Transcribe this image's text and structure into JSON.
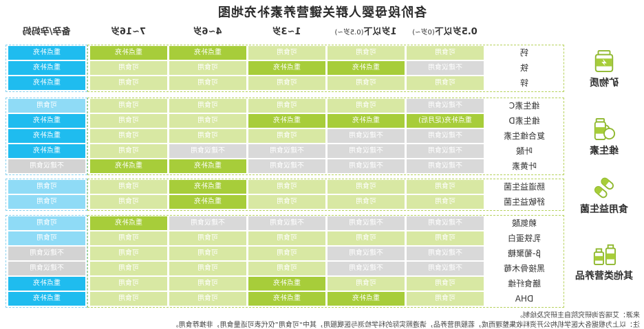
{
  "title": "各阶段母婴人群关键营养素补充地图",
  "columns": [
    {
      "label": "0.5岁以下",
      "sub": "(0岁~)"
    },
    {
      "label": "1岁以下",
      "sub": "(0.5岁~)"
    },
    {
      "label": "1~3岁",
      "sub": ""
    },
    {
      "label": "4~6岁",
      "sub": ""
    },
    {
      "label": "7~16岁",
      "sub": ""
    },
    {
      "label": "备孕/孕妈妈",
      "sub": ""
    }
  ],
  "colors": {
    "strong_green": "#a7cd3a",
    "ok_green": "#d8e8a3",
    "not_recommended_grey": "#d9d9d9",
    "strong_blue": "#1fbcef",
    "ok_blue": "#8fdbf6",
    "icon_green": "#8fb82e"
  },
  "groups": [
    {
      "name": "矿物质",
      "icon": "jar-icon",
      "rows": [
        {
          "nutrient": "钙",
          "cells": [
            "可食用",
            "可食用",
            "可食用",
            "重点补充",
            "重点补充",
            "重点补充"
          ]
        },
        {
          "nutrient": "铁",
          "cells": [
            "不建议食用",
            "重点补充",
            "重点补充",
            "可食用",
            "可食用",
            "重点补充"
          ]
        },
        {
          "nutrient": "锌",
          "cells": [
            "可食用",
            "可食用",
            "可食用",
            "可食用",
            "可食用",
            "重点补充"
          ]
        }
      ]
    },
    {
      "name": "维生素",
      "icon": "fruit-bottle-icon",
      "rows": [
        {
          "nutrient": "维生素C",
          "cells": [
            "不建议食用",
            "可食用",
            "可食用",
            "可食用",
            "可食用",
            "可食用"
          ]
        },
        {
          "nutrient": "维生素D",
          "cells": [
            "重点补充(足月后)",
            "重点补充",
            "重点补充",
            "可食用",
            "可食用",
            "重点补充"
          ]
        },
        {
          "nutrient": "复合维生素",
          "cells": [
            "不建议食用",
            "不建议食用",
            "可食用",
            "可食用",
            "可食用",
            "重点补充"
          ]
        },
        {
          "nutrient": "叶酸",
          "cells": [
            "不建议食用",
            "不建议食用",
            "不建议食用",
            "不建议食用",
            "可食用",
            "重点补充"
          ]
        },
        {
          "nutrient": "叶黄素",
          "cells": [
            "不建议食用",
            "不建议食用",
            "不建议食用",
            "重点补充",
            "重点补充",
            "不建议食用"
          ]
        }
      ]
    },
    {
      "name": "食用益生菌",
      "icon": "capsule-icon",
      "rows": [
        {
          "nutrient": "肠道益生菌",
          "cells": [
            "可食用",
            "可食用",
            "可食用",
            "重点补充",
            "可食用",
            "可食用"
          ]
        },
        {
          "nutrient": "舒敏益生菌",
          "cells": [
            "可食用",
            "可食用",
            "可食用",
            "重点补充",
            "可食用",
            "可食用"
          ]
        }
      ]
    },
    {
      "name": "其他类营养品",
      "icon": "bottles-icon",
      "rows": [
        {
          "nutrient": "赖氨酸",
          "cells": [
            "不建议食用",
            "不建议食用",
            "不建议食用",
            "不建议食用",
            "重点补充",
            "可食用"
          ]
        },
        {
          "nutrient": "乳铁蛋白",
          "cells": [
            "可食用",
            "可食用",
            "可食用",
            "可食用",
            "可食用",
            "可食用"
          ]
        },
        {
          "nutrient": "β-葡聚糖",
          "cells": [
            "不建议食用",
            "不建议食用",
            "可食用",
            "可食用",
            "可食用",
            "不建议食用"
          ]
        },
        {
          "nutrient": "黑接骨木莓",
          "cells": [
            "不建议食用",
            "不建议食用",
            "可食用",
            "可食用",
            "可食用",
            "不建议食用"
          ]
        },
        {
          "nutrient": "膳食纤维",
          "cells": [
            "可食用",
            "可食用",
            "重点补充",
            "可食用",
            "可食用",
            "重点补充"
          ]
        },
        {
          "nutrient": "DHA",
          "cells": [
            "可食用",
            "重点补充",
            "重点补充",
            "可食用",
            "可食用",
            "重点补充"
          ]
        }
      ]
    }
  ],
  "footer": {
    "source": "来源：艾瑞咨询研究院自主研究及绘制。",
    "note": "注：以上为根据各大医学机构公开资料收集整理而成，若服用营养品，请遵照实际的科学检测与医嘱服用，其中“可食用”仅代表可适量食用，非推荐食用。"
  }
}
